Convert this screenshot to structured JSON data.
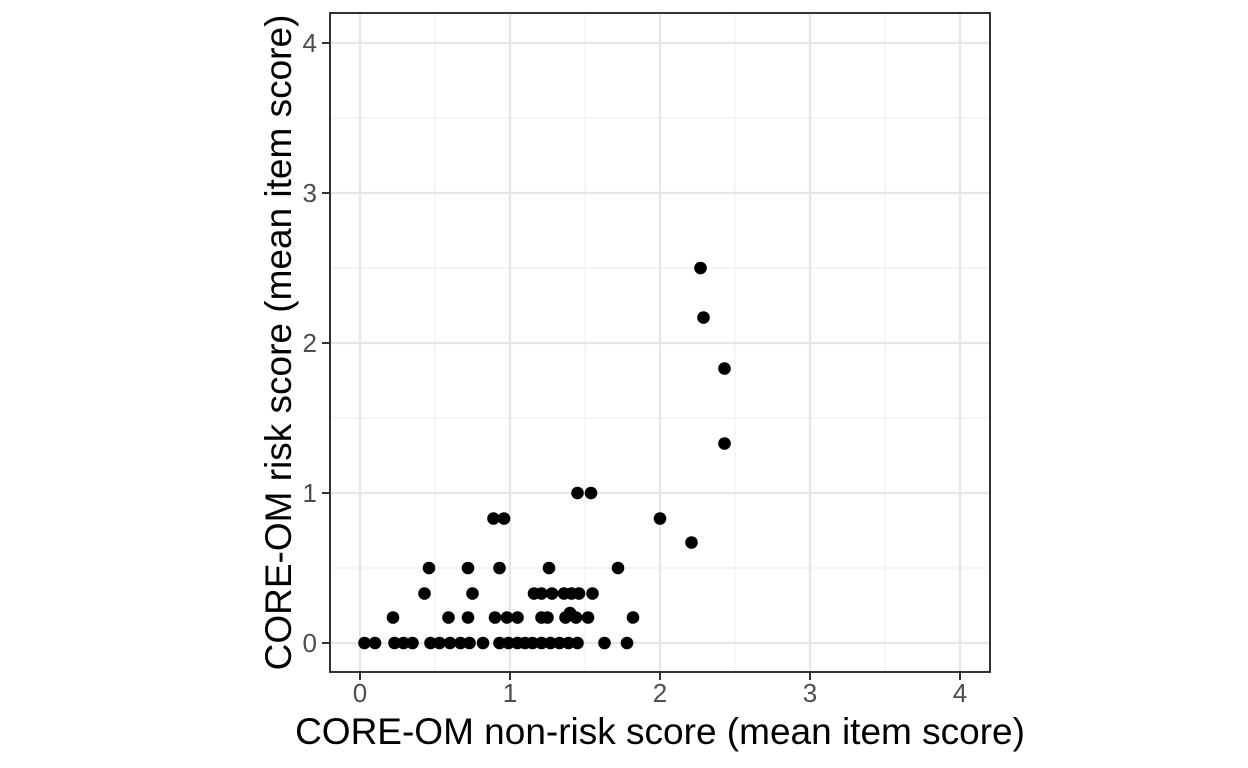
{
  "figure": {
    "background_color": "#ffffff",
    "panel_fill": "#ffffff",
    "panel_border_color": "#333333",
    "grid_major_color": "#e6e6e6",
    "grid_minor_color": "#f2f2f2",
    "tick_mark_color": "#333333",
    "tick_label_color": "#4d4d4d",
    "axis_title_color": "#000000",
    "point_color": "#000000"
  },
  "chart_data": {
    "type": "scatter",
    "title": "",
    "xlabel": "CORE-OM non-risk score (mean item score)",
    "ylabel": "CORE-OM risk score (mean item score)",
    "xlim": [
      -0.2,
      4.2
    ],
    "ylim": [
      -0.2,
      4.2
    ],
    "x_ticks": [
      0,
      1,
      2,
      3,
      4
    ],
    "y_ticks": [
      0,
      1,
      2,
      3,
      4
    ],
    "x_minor_breaks": [
      0.5,
      1.5,
      2.5,
      3.5
    ],
    "y_minor_breaks": [
      0.5,
      1.5,
      2.5,
      3.5
    ],
    "grid": true,
    "legend": false,
    "points": [
      [
        2.27,
        2.5
      ],
      [
        2.29,
        2.17
      ],
      [
        2.43,
        1.83
      ],
      [
        2.43,
        1.33
      ],
      [
        1.45,
        1.0
      ],
      [
        1.54,
        1.0
      ],
      [
        0.89,
        0.83
      ],
      [
        0.96,
        0.83
      ],
      [
        2.0,
        0.83
      ],
      [
        2.21,
        0.67
      ],
      [
        0.46,
        0.5
      ],
      [
        0.72,
        0.5
      ],
      [
        0.93,
        0.5
      ],
      [
        1.26,
        0.5
      ],
      [
        1.72,
        0.5
      ],
      [
        0.43,
        0.33
      ],
      [
        0.75,
        0.33
      ],
      [
        1.16,
        0.33
      ],
      [
        1.21,
        0.33
      ],
      [
        1.28,
        0.33
      ],
      [
        1.36,
        0.33
      ],
      [
        1.41,
        0.33
      ],
      [
        1.46,
        0.33
      ],
      [
        1.55,
        0.33
      ],
      [
        1.4,
        0.2
      ],
      [
        0.22,
        0.17
      ],
      [
        0.59,
        0.17
      ],
      [
        0.72,
        0.17
      ],
      [
        0.9,
        0.17
      ],
      [
        0.98,
        0.17
      ],
      [
        1.05,
        0.17
      ],
      [
        1.21,
        0.17
      ],
      [
        1.25,
        0.17
      ],
      [
        1.37,
        0.17
      ],
      [
        1.44,
        0.17
      ],
      [
        1.52,
        0.17
      ],
      [
        1.82,
        0.17
      ],
      [
        0.03,
        0
      ],
      [
        0.1,
        0
      ],
      [
        0.23,
        0
      ],
      [
        0.29,
        0
      ],
      [
        0.35,
        0
      ],
      [
        0.47,
        0
      ],
      [
        0.53,
        0
      ],
      [
        0.6,
        0
      ],
      [
        0.67,
        0
      ],
      [
        0.73,
        0
      ],
      [
        0.82,
        0
      ],
      [
        0.93,
        0
      ],
      [
        0.99,
        0
      ],
      [
        1.05,
        0
      ],
      [
        1.1,
        0
      ],
      [
        1.15,
        0
      ],
      [
        1.21,
        0
      ],
      [
        1.27,
        0
      ],
      [
        1.33,
        0
      ],
      [
        1.39,
        0
      ],
      [
        1.45,
        0
      ],
      [
        1.63,
        0
      ],
      [
        1.78,
        0
      ]
    ]
  }
}
